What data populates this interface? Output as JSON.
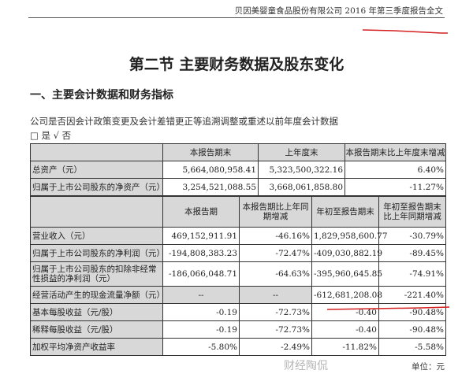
{
  "header": {
    "company_report": "贝因美婴童食品股份有限公司 2016 年第三季度报告全文"
  },
  "title": "第二节 主要财务数据及股东变化",
  "section": "一、主要会计数据和财务指标",
  "question": "公司是否因会计政策变更及会计差错更正等追溯调整或重述以前年度会计数据",
  "answer": "□ 是 √ 否",
  "table1": {
    "headers": [
      "",
      "本报告期末",
      "上年度末",
      "本报告期末比上年度末增减"
    ],
    "rows": [
      [
        "总资产（元）",
        "5,664,080,958.41",
        "5,323,500,322.16",
        "6.40%"
      ],
      [
        "归属于上市公司股东的净资产（元）",
        "3,254,521,088.55",
        "3,668,061,858.80",
        "-11.27%"
      ]
    ]
  },
  "table2": {
    "headers": [
      "",
      "本报告期",
      "本报告期比上年同期增减",
      "年初至报告期末",
      "年初至报告期末比上年同期增减"
    ],
    "rows": [
      [
        "营业收入（元）",
        "469,152,911.91",
        "-46.16%",
        "1,829,958,600.77",
        "-30.79%"
      ],
      [
        "归属于上市公司股东的净利润（元）",
        "-194,808,383.23",
        "-72.47%",
        "-409,030,882.19",
        "-89.45%"
      ],
      [
        "归属于上市公司股东的扣除非经常性损益的净利润（元）",
        "-186,066,048.71",
        "-64.63%",
        "-395,960,645.85",
        "-74.91%"
      ],
      [
        "经营活动产生的现金流量净额（元）",
        "--",
        "--",
        "-612,681,208.08",
        "-221.40%"
      ],
      [
        "基本每股收益（元/股）",
        "-0.19",
        "-72.73%",
        "-0.40",
        "-90.48%"
      ],
      [
        "稀释每股收益（元/股）",
        "-0.19",
        "-72.73%",
        "-0.40",
        "-90.48%"
      ],
      [
        "加权平均净资产收益率",
        "-5.80%",
        "-2.49%",
        "-11.82%",
        "-5.58%"
      ]
    ]
  },
  "unit": "单位：元",
  "watermark": "财经陶侃",
  "colors": {
    "annotation_red": "#d42020",
    "header_gray": "#d8d8d8"
  }
}
